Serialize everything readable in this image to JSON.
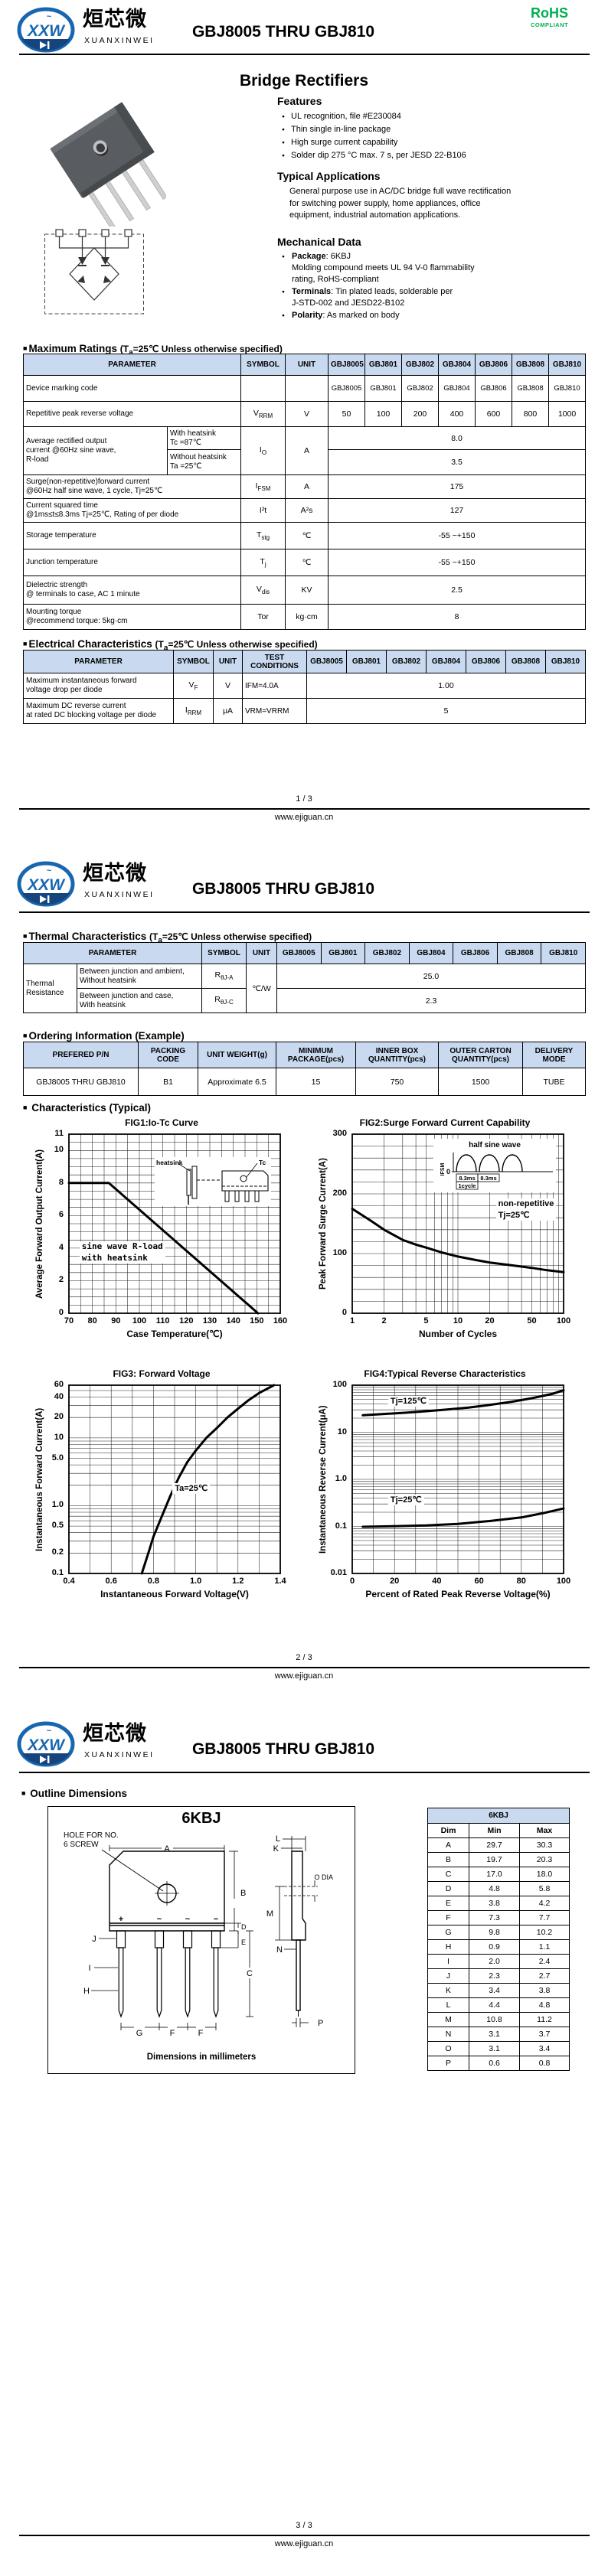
{
  "brand": {
    "logo_text": "XXW",
    "cn": "烜芯微",
    "en": "XUANXINWEI"
  },
  "doc_title": "GBJ8005 THRU GBJ810",
  "rohs": {
    "line1": "RoHS",
    "line2": "COMPLIANT",
    "color": "#00b050"
  },
  "site": "www.ejiguan.cn",
  "pages": {
    "p1": "1 / 3",
    "p2": "2 / 3",
    "p3": "3 / 3"
  },
  "product_heading": "Bridge Rectifiers",
  "features": {
    "title": "Features",
    "items": [
      "UL recognition, file #E230084",
      "Thin single in-line package",
      "High surge current capability",
      "Solder dip 275 °C max. 7 s, per JESD 22-B106"
    ]
  },
  "applications": {
    "title": "Typical Applications",
    "text": "General purpose use in AC/DC bridge full wave rectification\nfor switching power supply, home appliances, office\nequipment, industrial automation applications."
  },
  "mechanical": {
    "title": "Mechanical Data",
    "items": [
      {
        "label": "Package",
        "text": ": 6KBJ\nMolding compound meets UL 94 V-0 flammability\nrating, RoHS-compliant"
      },
      {
        "label": "Terminals",
        "text": ": Tin plated leads, solderable per\nJ-STD-002 and JESD22-B102"
      },
      {
        "label": "Polarity",
        "text": ": As marked on body"
      }
    ]
  },
  "devices": [
    "GBJ8005",
    "GBJ801",
    "GBJ802",
    "GBJ804",
    "GBJ806",
    "GBJ808",
    "GBJ810"
  ],
  "table_headers": {
    "parameter": "PARAMETER",
    "symbol": "SYMBOL",
    "unit": "UNIT",
    "test": "TEST\nCONDITIONS"
  },
  "cond": {
    "pre": "(T",
    "sub": "a",
    "post": "=25℃ Unless otherwise specified)"
  },
  "max_ratings": {
    "title": "Maximum Ratings",
    "rows": {
      "marking": {
        "param": "Device marking code",
        "values": [
          "GBJ8005",
          "GBJ801",
          "GBJ802",
          "GBJ804",
          "GBJ806",
          "GBJ808",
          "GBJ810"
        ]
      },
      "vrrm": {
        "param": "Repetitive peak reverse voltage",
        "symbol": {
          "m": "V",
          "s": "RRM"
        },
        "unit": "V",
        "values": [
          "50",
          "100",
          "200",
          "400",
          "600",
          "800",
          "1000"
        ]
      },
      "io": {
        "param": "Average rectified output\ncurrent  @60Hz sine wave,\nR-load",
        "sub_a": "With heatsink\nTc =87℃",
        "sub_b": "Without heatsink\nTa =25℃",
        "symbol": {
          "m": "I",
          "s": "O"
        },
        "unit": "A",
        "val_a": "8.0",
        "val_b": "3.5"
      },
      "ifsm": {
        "param": "Surge(non-repetitive)forward current\n@60Hz half sine wave, 1 cycle, Tj=25℃",
        "symbol": {
          "m": "I",
          "s": "FSM"
        },
        "unit": "A",
        "value": "175"
      },
      "i2t": {
        "param": "Current squared time\n@1ms≤t≤8.3ms Tj=25℃, Rating of per diode",
        "symbol": {
          "m": "I²t",
          "s": ""
        },
        "unit": "A²s",
        "value": "127"
      },
      "tstg": {
        "param": "Storage temperature",
        "symbol": {
          "m": "T",
          "s": "stg"
        },
        "unit": "℃",
        "value": "-55 ~+150"
      },
      "tj": {
        "param": "Junction temperature",
        "symbol": {
          "m": "T",
          "s": "j"
        },
        "unit": "℃",
        "value": "-55 ~+150"
      },
      "vdis": {
        "param": "Dielectric strength\n@ terminals to case, AC 1 minute",
        "symbol": {
          "m": "V",
          "s": "dis"
        },
        "unit": "KV",
        "value": "2.5"
      },
      "tor": {
        "param": "Mounting torque\n@recommend torque: 5kg·cm",
        "symbol": {
          "m": "Tor",
          "s": ""
        },
        "unit": "kg·cm",
        "value": "8"
      }
    }
  },
  "electrical": {
    "title": "Electrical Characteristics",
    "rows": {
      "vf": {
        "param": "Maximum instantaneous forward\nvoltage drop per diode",
        "symbol": {
          "m": "V",
          "s": "F"
        },
        "unit": "V",
        "test": "IFM=4.0A",
        "value": "1.00"
      },
      "irrm": {
        "param": "Maximum DC reverse current\nat rated DC blocking voltage per diode",
        "symbol": {
          "m": "I",
          "s": "RRM"
        },
        "unit": "μA",
        "test": "VRM=VRRM",
        "value": "5"
      }
    }
  },
  "thermal": {
    "title": "Thermal Characteristics",
    "group": "Thermal\nResistance",
    "unit": "℃/W",
    "rows": [
      {
        "param": "Between junction and ambient,\nWithout heatsink",
        "symbol": {
          "m": "R",
          "s": "θJ-A"
        },
        "value": "25.0"
      },
      {
        "param": "Between junction and case,\nWith heatsink",
        "symbol": {
          "m": "R",
          "s": "θJ-C"
        },
        "value": "2.3"
      }
    ]
  },
  "ordering": {
    "title": "Ordering Information (Example)",
    "headers": [
      "PREFERED P/N",
      "PACKING\nCODE",
      "UNIT WEIGHT(g)",
      "MINIMUM\nPACKAGE(pcs)",
      "INNER BOX\nQUANTITY(pcs)",
      "OUTER CARTON\nQUANTITY(pcs)",
      "DELIVERY MODE"
    ],
    "row": [
      "GBJ8005 THRU GBJ810",
      "B1",
      "Approximate 6.5",
      "15",
      "750",
      "1500",
      "TUBE"
    ]
  },
  "characteristics_title": "Characteristics (Typical)",
  "charts": [
    {
      "id": "fig1",
      "type": "line",
      "title": "FIG1:Io-Tc Curve",
      "xlabel": "Case Temperature(℃)",
      "ylabel": "Average Forward Output Current(A)",
      "xscale": "linear",
      "yscale": "linear",
      "xlim": [
        70,
        160
      ],
      "ylim": [
        0,
        11
      ],
      "xgrid": 5,
      "ygrid": 0.5,
      "xticks": [
        70,
        80,
        90,
        100,
        110,
        120,
        130,
        140,
        150,
        160
      ],
      "yticks": [
        0,
        2,
        4,
        6,
        8,
        10,
        11
      ],
      "series": [
        {
          "name": "Io with heatsink",
          "points": [
            [
              70,
              8
            ],
            [
              87,
              8
            ],
            [
              150.5,
              0
            ]
          ]
        }
      ],
      "annotations": [
        {
          "text": "sine wave R-load\nwith heatsink",
          "fx": 0.05,
          "fy": 0.6,
          "mono": true
        }
      ]
    },
    {
      "id": "fig2",
      "type": "line",
      "title": "FIG2:Surge Forward Current Capability",
      "xlabel": "Number of Cycles",
      "ylabel": "Peak Forward Surge Current(A)",
      "xscale": "log",
      "yscale": "linear",
      "xlim": [
        1,
        100
      ],
      "ylim": [
        0,
        300
      ],
      "ygrid": 20,
      "xticks": [
        1,
        2,
        5,
        10,
        20,
        50,
        100
      ],
      "yticks": [
        0,
        100,
        200,
        300
      ],
      "series": [
        {
          "name": "IFSM non-repetitive",
          "points": [
            [
              1,
              175
            ],
            [
              1.5,
              155
            ],
            [
              2,
              140
            ],
            [
              3,
              123
            ],
            [
              4,
              115
            ],
            [
              5,
              110
            ],
            [
              7,
              102
            ],
            [
              10,
              95
            ],
            [
              15,
              89
            ],
            [
              20,
              85
            ],
            [
              30,
              81
            ],
            [
              50,
              76
            ],
            [
              70,
              72
            ],
            [
              100,
              69
            ]
          ]
        }
      ],
      "annotations": [
        {
          "text": "non-repetitive\nTj=25℃",
          "fx": 0.68,
          "fy": 0.36
        }
      ]
    },
    {
      "id": "fig3",
      "type": "line",
      "title": "FIG3: Forward Voltage",
      "xlabel": "Instantaneous Forward Voltage(V)",
      "ylabel": "Instantaneous Forward Current(A)",
      "xscale": "linear",
      "yscale": "log",
      "xlim": [
        0.4,
        1.4
      ],
      "ylim": [
        0.1,
        60
      ],
      "xgrid": 0.1,
      "xticks": [
        0.4,
        0.6,
        0.8,
        1.0,
        1.2,
        1.4
      ],
      "xtick_labels": [
        "0.4",
        "0.6",
        "0.8",
        "1.0",
        "1.2",
        "1.4"
      ],
      "yticks": [
        0.1,
        0.2,
        0.5,
        1.0,
        5.0,
        10,
        20,
        40,
        60
      ],
      "ytick_labels": [
        "0.1",
        "0.2",
        "0.5",
        "1.0",
        "5.0",
        "10",
        "20",
        "40",
        "60"
      ],
      "series": [
        {
          "name": "Ta=25C",
          "points": [
            [
              0.745,
              0.1
            ],
            [
              0.78,
              0.22
            ],
            [
              0.8,
              0.35
            ],
            [
              0.84,
              0.7
            ],
            [
              0.88,
              1.4
            ],
            [
              0.92,
              2.6
            ],
            [
              0.96,
              4.4
            ],
            [
              1.0,
              6.5
            ],
            [
              1.05,
              10
            ],
            [
              1.1,
              14
            ],
            [
              1.15,
              20
            ],
            [
              1.2,
              27
            ],
            [
              1.25,
              36
            ],
            [
              1.3,
              46
            ],
            [
              1.37,
              60
            ]
          ]
        }
      ],
      "annotations": [
        {
          "text": "Ta=25℃",
          "fx": 0.49,
          "fy": 0.52
        }
      ]
    },
    {
      "id": "fig4",
      "type": "line",
      "title": "FIG4:Typical Reverse Characteristics",
      "xlabel": "Percent of Rated Peak Reverse Voltage(%)",
      "ylabel": "Instantaneous Reverse Current(μA)",
      "xscale": "linear",
      "yscale": "log",
      "xlim": [
        0,
        100
      ],
      "ylim": [
        0.01,
        100
      ],
      "xgrid": 10,
      "xticks": [
        0,
        20,
        40,
        60,
        80,
        100
      ],
      "yticks": [
        0.01,
        0.1,
        1.0,
        10,
        100
      ],
      "ytick_labels": [
        "0.01",
        "0.1",
        "1.0",
        "10",
        "100"
      ],
      "series": [
        {
          "name": "Tj=125℃",
          "points": [
            [
              5,
              23
            ],
            [
              15,
              24.5
            ],
            [
              25,
              26
            ],
            [
              35,
              28
            ],
            [
              45,
              30.5
            ],
            [
              55,
              33.5
            ],
            [
              65,
              38
            ],
            [
              75,
              44
            ],
            [
              85,
              53
            ],
            [
              95,
              66
            ],
            [
              100,
              78
            ]
          ]
        },
        {
          "name": "Tj=25℃",
          "points": [
            [
              5,
              0.098
            ],
            [
              20,
              0.101
            ],
            [
              35,
              0.105
            ],
            [
              50,
              0.113
            ],
            [
              65,
              0.13
            ],
            [
              80,
              0.155
            ],
            [
              90,
              0.19
            ],
            [
              100,
              0.24
            ]
          ]
        }
      ],
      "annotations": [
        {
          "text": "Tj=125℃",
          "fx": 0.17,
          "fy": 0.055
        },
        {
          "text": "Tj=25℃",
          "fx": 0.17,
          "fy": 0.58
        }
      ]
    }
  ],
  "chart_extras": {
    "fig1_inset": {
      "heatsink": "heatsink",
      "tc": "Tc"
    },
    "fig2_inset": {
      "title": "half sine wave",
      "t1": "8.3ms",
      "t2": "8.3ms",
      "cycle": "1cycle",
      "ifsm": "IFSM",
      "zero": "0"
    }
  },
  "outline": {
    "title": "Outline Dimensions",
    "pkg": "6KBJ",
    "hole_note1": "HOLE FOR NO.",
    "hole_note2": "6 SCREW",
    "odia": "O DIA",
    "caption": "Dimensions in millimeters",
    "terminals": [
      "+",
      "~",
      "~",
      "−"
    ],
    "cols": [
      "Dim",
      "Min",
      "Max"
    ],
    "rows": [
      {
        "dim": "A",
        "min": "29.7",
        "max": "30.3"
      },
      {
        "dim": "B",
        "min": "19.7",
        "max": "20.3"
      },
      {
        "dim": "C",
        "min": "17.0",
        "max": "18.0"
      },
      {
        "dim": "D",
        "min": "4.8",
        "max": "5.8"
      },
      {
        "dim": "E",
        "min": "3.8",
        "max": "4.2"
      },
      {
        "dim": "F",
        "min": "7.3",
        "max": "7.7"
      },
      {
        "dim": "G",
        "min": "9.8",
        "max": "10.2"
      },
      {
        "dim": "H",
        "min": "0.9",
        "max": "1.1"
      },
      {
        "dim": "I",
        "min": "2.0",
        "max": "2.4"
      },
      {
        "dim": "J",
        "min": "2.3",
        "max": "2.7"
      },
      {
        "dim": "K",
        "min": "3.4",
        "max": "3.8"
      },
      {
        "dim": "L",
        "min": "4.4",
        "max": "4.8"
      },
      {
        "dim": "M",
        "min": "10.8",
        "max": "11.2"
      },
      {
        "dim": "N",
        "min": "3.1",
        "max": "3.7"
      },
      {
        "dim": "O",
        "min": "3.1",
        "max": "3.4"
      },
      {
        "dim": "P",
        "min": "0.6",
        "max": "0.8"
      }
    ]
  }
}
